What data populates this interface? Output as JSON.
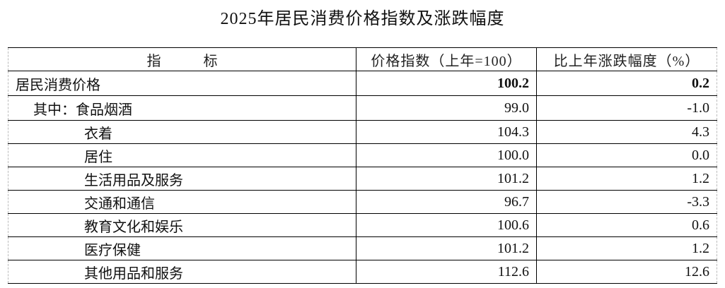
{
  "title": "2025年居民消费价格指数及涨跌幅度",
  "table": {
    "headers": [
      "指　　　标",
      "价格指数（上年=100）",
      "比上年涨跌幅度（%）"
    ],
    "rows": [
      {
        "label": "居民消费价格",
        "index": "100.2",
        "change": "0.2",
        "level": 0,
        "bold": true
      },
      {
        "label": "其中：食品烟酒",
        "index": "99.0",
        "change": "-1.0",
        "level": 1
      },
      {
        "label": "衣着",
        "index": "104.3",
        "change": "4.3",
        "level": 2
      },
      {
        "label": "居住",
        "index": "100.0",
        "change": "0.0",
        "level": 2
      },
      {
        "label": "生活用品及服务",
        "index": "101.2",
        "change": "1.2",
        "level": 2
      },
      {
        "label": "交通和通信",
        "index": "96.7",
        "change": "-3.3",
        "level": 2
      },
      {
        "label": "教育文化和娱乐",
        "index": "100.6",
        "change": "0.6",
        "level": 2
      },
      {
        "label": "医疗保健",
        "index": "101.2",
        "change": "1.2",
        "level": 2
      },
      {
        "label": "其他用品和服务",
        "index": "112.6",
        "change": "12.6",
        "level": 2
      }
    ]
  }
}
